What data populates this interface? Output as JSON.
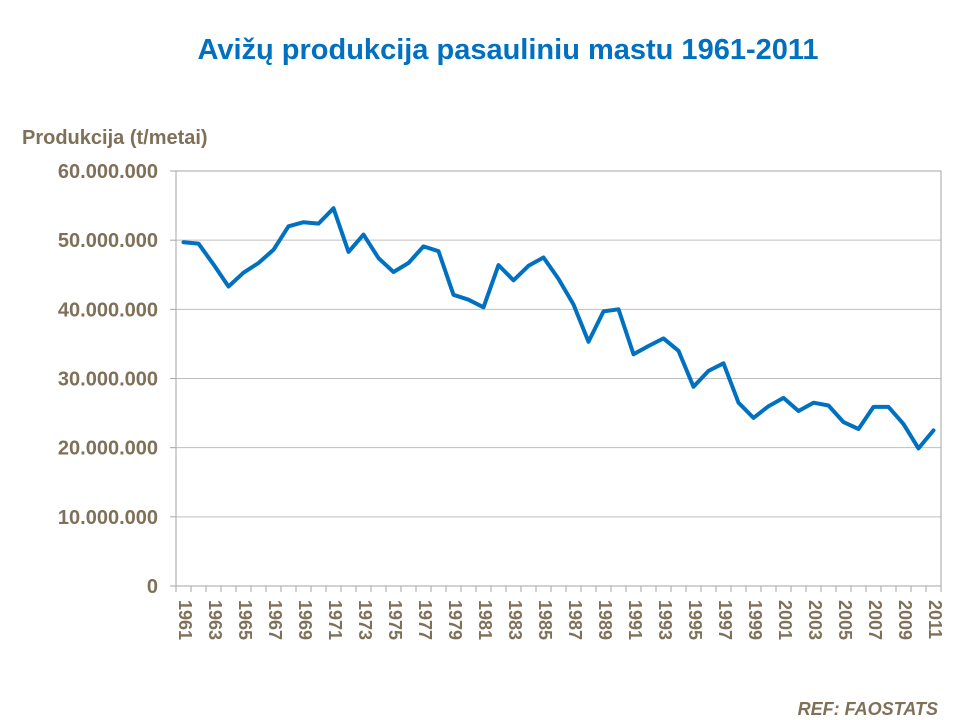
{
  "chart_data": {
    "type": "line",
    "title": "Avižų produkcija pasauliniu mastu 1961-2011",
    "ylabel": "Produkcija (t/metai)",
    "xlabel": "",
    "source": "REF: FAOSTATS",
    "ylim": [
      0,
      60000000
    ],
    "y_ticks": [
      0,
      10000000,
      20000000,
      30000000,
      40000000,
      50000000,
      60000000
    ],
    "y_tick_labels": [
      "0",
      "10.000.000",
      "20.000.000",
      "30.000.000",
      "40.000.000",
      "50.000.000",
      "60.000.000"
    ],
    "x_tick_labels": [
      "1961",
      "1963",
      "1965",
      "1967",
      "1969",
      "1971",
      "1973",
      "1975",
      "1977",
      "1979",
      "1981",
      "1983",
      "1985",
      "1987",
      "1989",
      "1991",
      "1993",
      "1995",
      "1997",
      "1999",
      "2001",
      "2003",
      "2005",
      "2007",
      "2009",
      "2011"
    ],
    "grid": true,
    "line_color": "#0070C0",
    "series": [
      {
        "x": [
          1961,
          1962,
          1963,
          1964,
          1965,
          1966,
          1967,
          1968,
          1969,
          1970,
          1971,
          1972,
          1973,
          1974,
          1975,
          1976,
          1977,
          1978,
          1979,
          1980,
          1981,
          1982,
          1983,
          1984,
          1985,
          1986,
          1987,
          1988,
          1989,
          1990,
          1991,
          1992,
          1993,
          1994,
          1995,
          1996,
          1997,
          1998,
          1999,
          2000,
          2001,
          2002,
          2003,
          2004,
          2005,
          2006,
          2007,
          2008,
          2009,
          2010,
          2011
        ],
        "values": [
          49700000,
          49500000,
          46500000,
          43300000,
          45300000,
          46700000,
          48600000,
          52000000,
          52600000,
          52400000,
          54600000,
          48300000,
          50800000,
          47400000,
          45400000,
          46700000,
          49100000,
          48400000,
          42100000,
          41400000,
          40300000,
          46400000,
          44200000,
          46300000,
          47500000,
          44400000,
          40700000,
          35300000,
          39700000,
          40000000,
          33500000,
          34700000,
          35800000,
          34000000,
          28800000,
          31100000,
          32200000,
          26500000,
          24300000,
          26000000,
          27200000,
          25300000,
          26500000,
          26100000,
          23700000,
          22700000,
          25900000,
          25900000,
          23400000,
          19900000,
          22500000
        ]
      }
    ]
  }
}
